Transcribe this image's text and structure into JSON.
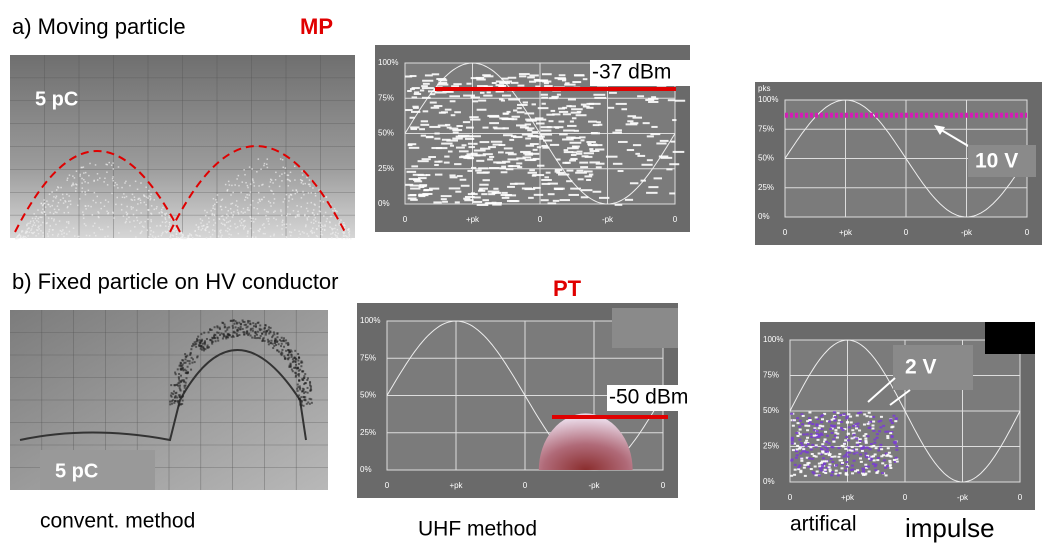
{
  "row_a": {
    "label": "a) Moving particle",
    "tag": "MP",
    "photo_charge": "5  pC",
    "uhf_level": "-37 dBm",
    "impulse_level": "10 V"
  },
  "row_b": {
    "label": "b) Fixed particle on HV conductor",
    "tag": "PT",
    "photo_charge": "5 pC",
    "uhf_level": "-50 dBm",
    "impulse_level": "2 V"
  },
  "scope_axis": {
    "corner": "pks",
    "y_labels": [
      "100%",
      "75%",
      "50%",
      "25%",
      "0%"
    ],
    "x_labels": [
      "0",
      "+pk",
      "0",
      "-pk",
      "0"
    ]
  },
  "captions": {
    "conventional": "convent. method",
    "uhf": "UHF method",
    "artificial": "artifical",
    "impulse": "impulse"
  }
}
